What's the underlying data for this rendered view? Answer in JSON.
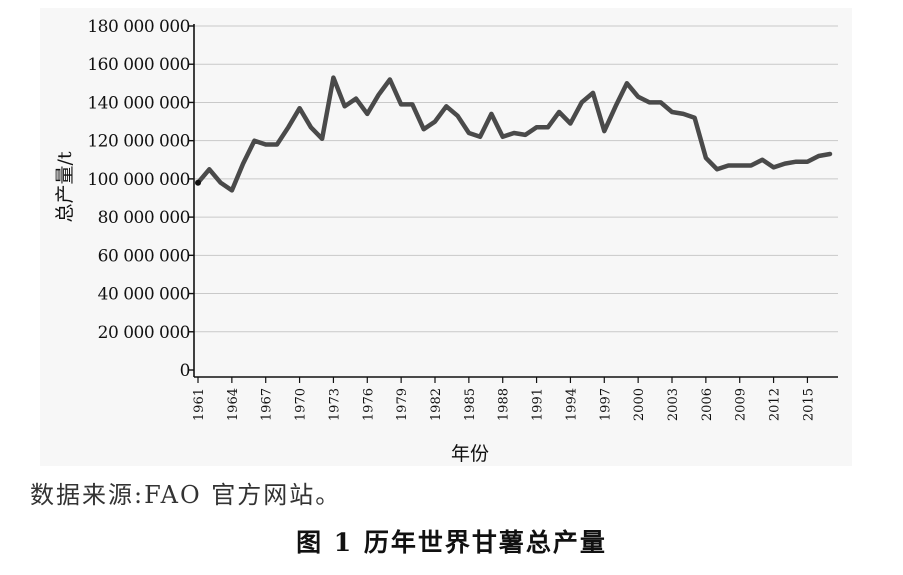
{
  "source_note": "数据来源:FAO 官方网站。",
  "caption": "图 1 历年世界甘薯总产量",
  "chart_data": {
    "type": "line",
    "title": "",
    "xlabel": "年份",
    "ylabel": "总产量/t",
    "ylim": [
      0,
      180000000
    ],
    "xlim": [
      1961,
      2017
    ],
    "y_ticks": [
      {
        "value": 0,
        "label": "0"
      },
      {
        "value": 20000000,
        "label": "20 000 000"
      },
      {
        "value": 40000000,
        "label": "40 000 000"
      },
      {
        "value": 60000000,
        "label": "60 000 000"
      },
      {
        "value": 80000000,
        "label": "80 000 000"
      },
      {
        "value": 100000000,
        "label": "100 000 000"
      },
      {
        "value": 120000000,
        "label": "120 000 000"
      },
      {
        "value": 140000000,
        "label": "140 000 000"
      },
      {
        "value": 160000000,
        "label": "160 000 000"
      },
      {
        "value": 180000000,
        "label": "180 000 000"
      }
    ],
    "x_ticks": [
      {
        "value": 1961,
        "label": "1961"
      },
      {
        "value": 1964,
        "label": "1964"
      },
      {
        "value": 1967,
        "label": "1967"
      },
      {
        "value": 1970,
        "label": "1970"
      },
      {
        "value": 1973,
        "label": "1973"
      },
      {
        "value": 1976,
        "label": "1976"
      },
      {
        "value": 1979,
        "label": "1979"
      },
      {
        "value": 1982,
        "label": "1982"
      },
      {
        "value": 1985,
        "label": "1985"
      },
      {
        "value": 1988,
        "label": "1988"
      },
      {
        "value": 1991,
        "label": "1991"
      },
      {
        "value": 1994,
        "label": "1994"
      },
      {
        "value": 1997,
        "label": "1997"
      },
      {
        "value": 2000,
        "label": "2000"
      },
      {
        "value": 2003,
        "label": "2003"
      },
      {
        "value": 2006,
        "label": "2006"
      },
      {
        "value": 2009,
        "label": "2009"
      },
      {
        "value": 2012,
        "label": "2012"
      },
      {
        "value": 2015,
        "label": "2015"
      }
    ],
    "grid": "horizontal",
    "line_color": "#4a4a4a",
    "series": [
      {
        "x": [
          1961,
          1962,
          1963,
          1964,
          1965,
          1966,
          1967,
          1968,
          1969,
          1970,
          1971,
          1972,
          1973,
          1974,
          1975,
          1976,
          1977,
          1978,
          1979,
          1980,
          1981,
          1982,
          1983,
          1984,
          1985,
          1986,
          1987,
          1988,
          1989,
          1990,
          1991,
          1992,
          1993,
          1994,
          1995,
          1996,
          1997,
          1998,
          1999,
          2000,
          2001,
          2002,
          2003,
          2004,
          2005,
          2006,
          2007,
          2008,
          2009,
          2010,
          2011,
          2012,
          2013,
          2014,
          2015,
          2016,
          2017
        ],
        "y": [
          98000000,
          105000000,
          98000000,
          94000000,
          108000000,
          120000000,
          118000000,
          118000000,
          127000000,
          137000000,
          127000000,
          121000000,
          153000000,
          138000000,
          142000000,
          134000000,
          144000000,
          152000000,
          139000000,
          139000000,
          126000000,
          130000000,
          138000000,
          133000000,
          124000000,
          122000000,
          134000000,
          122000000,
          124000000,
          123000000,
          127000000,
          127000000,
          135000000,
          129000000,
          140000000,
          145000000,
          125000000,
          138000000,
          150000000,
          143000000,
          140000000,
          140000000,
          135000000,
          134000000,
          132000000,
          111000000,
          105000000,
          107000000,
          107000000,
          107000000,
          110000000,
          106000000,
          108000000,
          109000000,
          109000000,
          112000000,
          113000000
        ]
      }
    ]
  }
}
